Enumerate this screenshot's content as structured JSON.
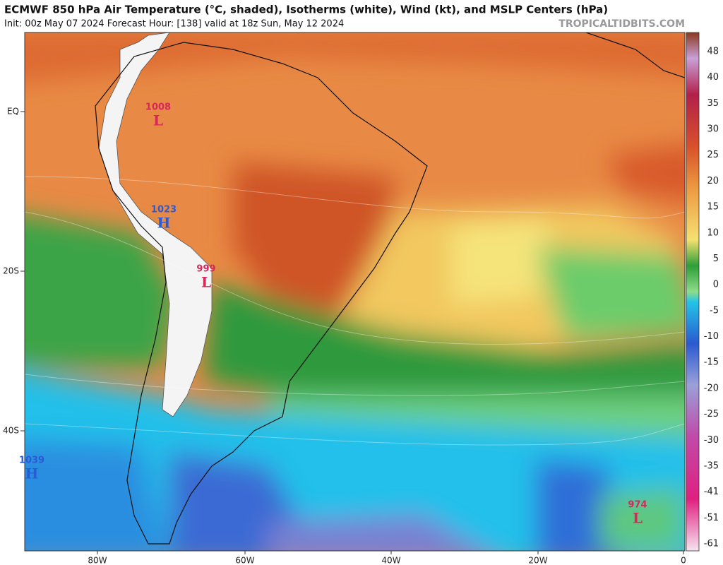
{
  "header": {
    "title": "ECMWF 850 hPa Air Temperature (°C, shaded), Isotherms (white), Wind (kt), and MSLP Centers (hPa)",
    "subtitle": "Init: 00z May 07 2024   Forecast Hour: [138]   valid at 18z Sun, May 12 2024",
    "credit": "TROPICALTIDBITS.COM"
  },
  "map": {
    "lat_labels": [
      "EQ",
      "20S",
      "40S"
    ],
    "lon_labels": [
      "80W",
      "60W",
      "40W",
      "20W",
      "0"
    ],
    "pressure_centers": [
      {
        "value": "1008",
        "symbol": "L"
      },
      {
        "value": "1023",
        "symbol": "H"
      },
      {
        "value": "999",
        "symbol": "L"
      },
      {
        "value": "1039",
        "symbol": "H"
      },
      {
        "value": "974",
        "symbol": "L"
      }
    ]
  },
  "colorbar": {
    "labels": [
      "48",
      "40",
      "35",
      "30",
      "25",
      "20",
      "15",
      "10",
      "5",
      "0",
      "-5",
      "-10",
      "-15",
      "-20",
      "-25",
      "-30",
      "-35",
      "-41",
      "-51",
      "-61"
    ]
  }
}
